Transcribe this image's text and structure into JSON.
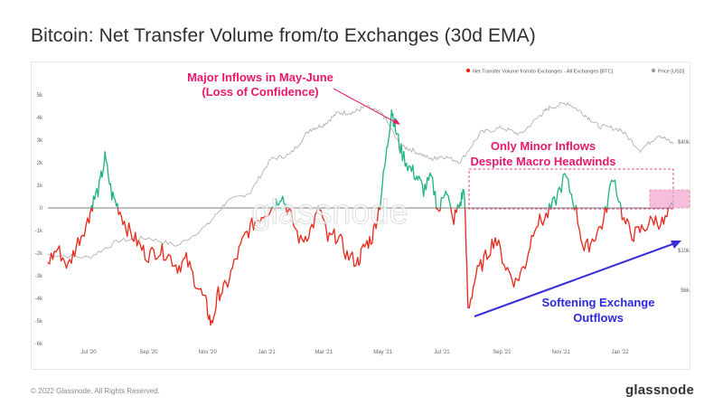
{
  "title": "Bitcoin: Net Transfer Volume from/to Exchanges (30d EMA)",
  "legend": {
    "series1": "Net Transfer Volume from/to Exchanges - All Exchanges [BTC]",
    "series2": "Price [USD]"
  },
  "watermark": "glassnode",
  "footer": {
    "copyright": "© 2022 Glassnode. All Rights Reserved.",
    "brand": "glassnode"
  },
  "annotations": {
    "major_line1": "Major Inflows in May-June",
    "major_line2": "(Loss of Confidence)",
    "minor_line1": "Only Minor Inflows",
    "minor_line2": "Despite Macro Headwinds",
    "soft_line1": "Softening Exchange",
    "soft_line2": "Outflows"
  },
  "colors": {
    "inflow": "#1fb27f",
    "outflow": "#e8271b",
    "price": "#a9a9a9",
    "annotation": "#e8176d",
    "arrow_blue": "#3a2fd6",
    "label_blue": "#2a2ae0"
  },
  "chart_data": {
    "type": "line",
    "x_tick_labels": [
      "Jul '20",
      "Sep '20",
      "Nov '20",
      "Jan '21",
      "Mar '21",
      "May '21",
      "Jul '21",
      "Sep '21",
      "Nov '21",
      "Jan '22"
    ],
    "y_left_tick_labels": [
      "5k",
      "4k",
      "3k",
      "2k",
      "1k",
      "0",
      "-1k",
      "-2k",
      "-3k",
      "-4k",
      "-5k",
      "-6k"
    ],
    "y_left_range": [
      -6000,
      5300
    ],
    "y_right_tick_labels": [
      "$40k",
      "$10k",
      "$6k"
    ],
    "y_right_scale": "log",
    "series": [
      {
        "name": "Net Transfer Volume from/to Exchanges - All Exchanges [BTC]",
        "x": [
          "2020-05-20",
          "2020-05-30",
          "2020-06-10",
          "2020-06-20",
          "2020-06-30",
          "2020-07-05",
          "2020-07-12",
          "2020-07-18",
          "2020-07-25",
          "2020-08-01",
          "2020-08-10",
          "2020-08-20",
          "2020-08-30",
          "2020-09-10",
          "2020-09-20",
          "2020-10-01",
          "2020-10-10",
          "2020-10-20",
          "2020-10-30",
          "2020-11-05",
          "2020-11-12",
          "2020-11-20",
          "2020-11-30",
          "2020-12-10",
          "2020-12-20",
          "2020-12-30",
          "2021-01-08",
          "2021-01-16",
          "2021-01-25",
          "2021-02-05",
          "2021-02-15",
          "2021-02-25",
          "2021-03-05",
          "2021-03-15",
          "2021-03-25",
          "2021-04-05",
          "2021-04-12",
          "2021-04-20",
          "2021-04-28",
          "2021-05-05",
          "2021-05-10",
          "2021-05-14",
          "2021-05-20",
          "2021-05-28",
          "2021-06-05",
          "2021-06-12",
          "2021-06-20",
          "2021-06-28",
          "2021-07-05",
          "2021-07-12",
          "2021-07-20",
          "2021-07-24",
          "2021-07-28",
          "2021-08-05",
          "2021-08-15",
          "2021-08-25",
          "2021-09-05",
          "2021-09-15",
          "2021-09-25",
          "2021-10-05",
          "2021-10-15",
          "2021-10-25",
          "2021-11-05",
          "2021-11-15",
          "2021-11-25",
          "2021-12-05",
          "2021-12-15",
          "2021-12-25",
          "2022-01-05",
          "2022-01-15",
          "2022-01-25",
          "2022-02-05",
          "2022-02-15",
          "2022-02-25"
        ],
        "y": [
          -2400,
          -1800,
          -2600,
          -1500,
          -600,
          200,
          900,
          2200,
          600,
          0,
          -900,
          -1500,
          -2100,
          -1900,
          -2000,
          -2600,
          -2300,
          -3300,
          -4200,
          -5200,
          -3800,
          -3500,
          -2300,
          -1200,
          -600,
          -200,
          100,
          600,
          -300,
          -1500,
          -1000,
          0,
          -1400,
          -1200,
          -2100,
          -2400,
          -1700,
          -1300,
          200,
          2500,
          4400,
          3500,
          2500,
          1800,
          1400,
          800,
          1300,
          -200,
          1000,
          -600,
          200,
          900,
          -4500,
          -3000,
          -2200,
          -1300,
          -2600,
          -3300,
          -2500,
          -700,
          -500,
          200,
          1400,
          200,
          -1900,
          -1300,
          -600,
          1500,
          -600,
          -1200,
          -900,
          -500,
          -700,
          100
        ]
      },
      {
        "name": "Price [USD]",
        "x": [
          "2020-05-20",
          "2020-07-01",
          "2020-08-01",
          "2020-09-01",
          "2020-10-01",
          "2020-11-01",
          "2020-11-20",
          "2020-12-15",
          "2021-01-05",
          "2021-01-25",
          "2021-02-15",
          "2021-03-01",
          "2021-03-15",
          "2021-04-01",
          "2021-04-14",
          "2021-05-01",
          "2021-05-19",
          "2021-06-01",
          "2021-06-20",
          "2021-07-01",
          "2021-07-20",
          "2021-08-10",
          "2021-09-01",
          "2021-09-20",
          "2021-10-10",
          "2021-10-20",
          "2021-11-08",
          "2021-11-25",
          "2021-12-10",
          "2022-01-01",
          "2022-01-22",
          "2022-02-10",
          "2022-02-25"
        ],
        "y": [
          9500,
          9100,
          11300,
          11700,
          10600,
          13800,
          18500,
          21000,
          32000,
          34000,
          47000,
          50000,
          58000,
          58500,
          63000,
          57000,
          38000,
          36000,
          32000,
          33500,
          31000,
          45000,
          48000,
          44000,
          56000,
          62000,
          66000,
          57000,
          49000,
          47000,
          36000,
          44000,
          39000
        ]
      }
    ]
  }
}
